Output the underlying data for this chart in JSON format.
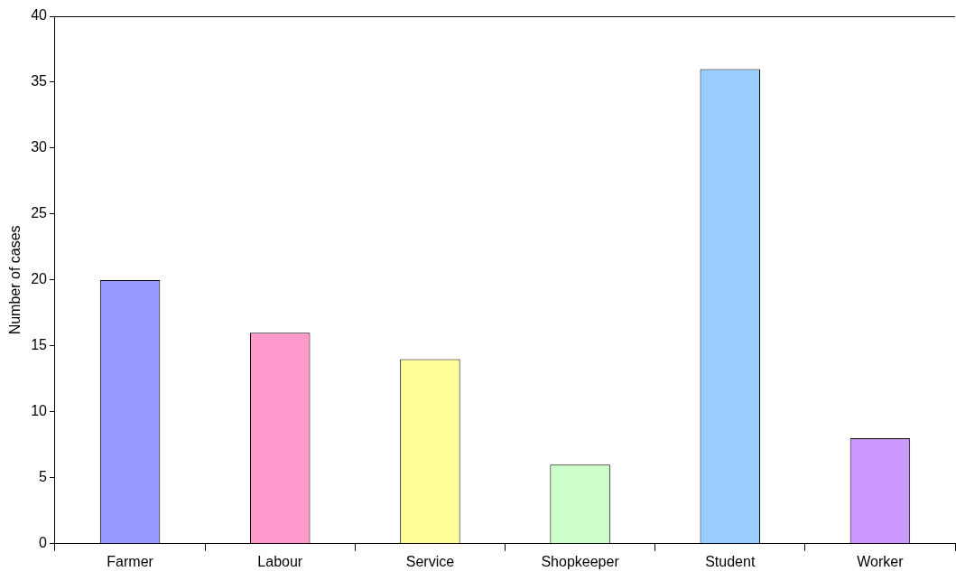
{
  "chart_data": {
    "type": "bar",
    "ylabel": "Number of cases",
    "categories": [
      "Farmer",
      "Labour",
      "Service",
      "Shopkeeper",
      "Student",
      "Worker"
    ],
    "values": [
      20,
      16,
      14,
      6,
      36,
      8
    ],
    "colors": [
      "#9999ff",
      "#ff99cc",
      "#ffff99",
      "#ccffcc",
      "#99ccff",
      "#cc99ff"
    ],
    "ylim": [
      0,
      40
    ],
    "yticks": [
      0,
      5,
      10,
      15,
      20,
      25,
      30,
      35,
      40
    ],
    "grid": false,
    "legend": false
  }
}
